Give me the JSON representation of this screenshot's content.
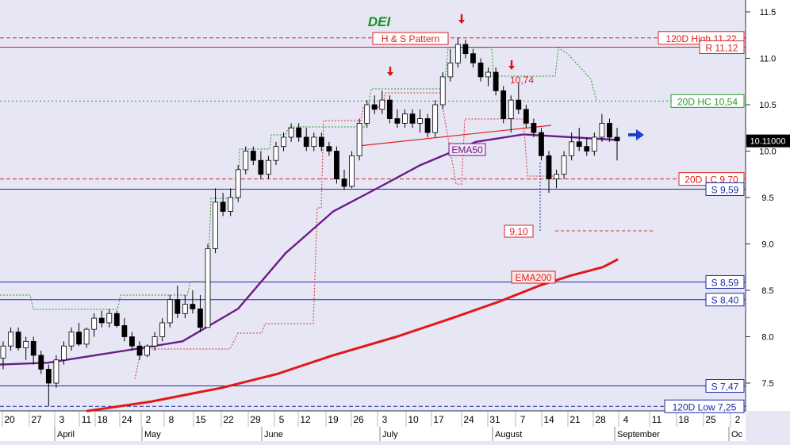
{
  "chart_data": {
    "type": "candlestick",
    "title": "DEI",
    "ylim": [
      7.2,
      11.6
    ],
    "y_ticks": [
      "11.5",
      "11.0",
      "10.5",
      "10.0",
      "9.5",
      "9.0",
      "8.5",
      "8.0",
      "7.5"
    ],
    "x_day_labels": [
      "20",
      "27",
      "3",
      "11",
      "18",
      "24",
      "2",
      "8",
      "15",
      "22",
      "29",
      "5",
      "12",
      "19",
      "26",
      "3",
      "10",
      "17",
      "24",
      "31",
      "7",
      "14",
      "21",
      "28",
      "4",
      "11",
      "18",
      "25",
      "2"
    ],
    "x_month_labels": [
      "April",
      "May",
      "June",
      "July",
      "August",
      "September",
      "Oc"
    ],
    "last_price": "10.11000",
    "horizontal_levels": [
      {
        "label": "120D High 11,22",
        "value": 11.22,
        "style": "dashed",
        "color": "#dd2222"
      },
      {
        "label": "R 11,12",
        "value": 11.12,
        "style": "solid",
        "color": "#dd2222"
      },
      {
        "label": "20D HC 10,54",
        "value": 10.54,
        "style": "dotted",
        "color": "#2a9a2a"
      },
      {
        "label": "20D LC 9,70",
        "value": 9.7,
        "style": "dashed",
        "color": "#dd2222"
      },
      {
        "label": "S 9,59",
        "value": 9.59,
        "style": "solid",
        "color": "#1a2aa8"
      },
      {
        "label": "S 8,59",
        "value": 8.59,
        "style": "solid",
        "color": "#1a2aa8"
      },
      {
        "label": "S 8,40",
        "value": 8.4,
        "style": "solid",
        "color": "#1a2aa8"
      },
      {
        "label": "S 7,47",
        "value": 7.47,
        "style": "solid",
        "color": "#1a2aa8"
      },
      {
        "label": "120D Low 7,25",
        "value": 7.25,
        "style": "dashed",
        "color": "#1a2aa8"
      }
    ],
    "annotations": [
      {
        "text": "H & S Pattern"
      },
      {
        "text": "10,74"
      },
      {
        "text": "9,10"
      },
      {
        "text": "EMA50"
      },
      {
        "text": "EMA200"
      }
    ],
    "series": [
      {
        "name": "EMA200",
        "values": [
          7.2,
          7.3,
          7.45,
          7.6,
          7.8,
          8.0,
          8.2,
          8.38,
          8.55,
          8.66,
          8.75,
          8.83
        ]
      },
      {
        "name": "EMA50",
        "values": [
          7.7,
          7.72,
          7.8,
          7.88,
          7.95,
          8.3,
          8.9,
          9.35,
          9.62,
          9.85,
          10.1,
          10.18,
          10.12
        ]
      }
    ],
    "candles": [
      {
        "o": 7.77,
        "h": 7.95,
        "l": 7.65,
        "c": 7.9
      },
      {
        "o": 7.9,
        "h": 8.1,
        "l": 7.85,
        "c": 8.05
      },
      {
        "o": 8.05,
        "h": 8.1,
        "l": 7.85,
        "c": 7.88
      },
      {
        "o": 7.88,
        "h": 8.0,
        "l": 7.75,
        "c": 7.95
      },
      {
        "o": 7.95,
        "h": 8.0,
        "l": 7.7,
        "c": 7.8
      },
      {
        "o": 7.8,
        "h": 7.85,
        "l": 7.6,
        "c": 7.65
      },
      {
        "o": 7.65,
        "h": 7.7,
        "l": 7.25,
        "c": 7.5
      },
      {
        "o": 7.5,
        "h": 7.8,
        "l": 7.45,
        "c": 7.75
      },
      {
        "o": 7.75,
        "h": 7.95,
        "l": 7.7,
        "c": 7.9
      },
      {
        "o": 7.9,
        "h": 8.1,
        "l": 7.85,
        "c": 8.05
      },
      {
        "o": 8.05,
        "h": 8.15,
        "l": 7.9,
        "c": 7.92
      },
      {
        "o": 7.92,
        "h": 8.1,
        "l": 7.88,
        "c": 8.08
      },
      {
        "o": 8.08,
        "h": 8.25,
        "l": 8.0,
        "c": 8.2
      },
      {
        "o": 8.2,
        "h": 8.28,
        "l": 8.1,
        "c": 8.15
      },
      {
        "o": 8.15,
        "h": 8.3,
        "l": 8.1,
        "c": 8.25
      },
      {
        "o": 8.25,
        "h": 8.28,
        "l": 8.1,
        "c": 8.12
      },
      {
        "o": 8.12,
        "h": 8.2,
        "l": 7.95,
        "c": 8.0
      },
      {
        "o": 8.0,
        "h": 8.05,
        "l": 7.85,
        "c": 7.9
      },
      {
        "o": 7.9,
        "h": 7.95,
        "l": 7.75,
        "c": 7.8
      },
      {
        "o": 7.8,
        "h": 7.92,
        "l": 7.78,
        "c": 7.9
      },
      {
        "o": 7.9,
        "h": 8.05,
        "l": 7.85,
        "c": 8.0
      },
      {
        "o": 8.0,
        "h": 8.2,
        "l": 7.95,
        "c": 8.15
      },
      {
        "o": 8.15,
        "h": 8.45,
        "l": 8.1,
        "c": 8.4
      },
      {
        "o": 8.4,
        "h": 8.55,
        "l": 8.2,
        "c": 8.25
      },
      {
        "o": 8.25,
        "h": 8.45,
        "l": 8.2,
        "c": 8.35
      },
      {
        "o": 8.35,
        "h": 8.5,
        "l": 8.25,
        "c": 8.3
      },
      {
        "o": 8.3,
        "h": 8.45,
        "l": 8.05,
        "c": 8.1
      },
      {
        "o": 8.1,
        "h": 9.0,
        "l": 8.1,
        "c": 8.95
      },
      {
        "o": 8.95,
        "h": 9.6,
        "l": 8.9,
        "c": 9.45
      },
      {
        "o": 9.45,
        "h": 9.55,
        "l": 9.3,
        "c": 9.35
      },
      {
        "o": 9.35,
        "h": 9.6,
        "l": 9.3,
        "c": 9.5
      },
      {
        "o": 9.5,
        "h": 9.85,
        "l": 9.45,
        "c": 9.8
      },
      {
        "o": 9.8,
        "h": 10.05,
        "l": 9.75,
        "c": 10.0
      },
      {
        "o": 10.0,
        "h": 10.05,
        "l": 9.85,
        "c": 9.9
      },
      {
        "o": 9.9,
        "h": 10.0,
        "l": 9.7,
        "c": 9.75
      },
      {
        "o": 9.75,
        "h": 9.95,
        "l": 9.7,
        "c": 9.9
      },
      {
        "o": 9.9,
        "h": 10.1,
        "l": 9.85,
        "c": 10.05
      },
      {
        "o": 10.05,
        "h": 10.2,
        "l": 10.0,
        "c": 10.15
      },
      {
        "o": 10.15,
        "h": 10.3,
        "l": 10.1,
        "c": 10.25
      },
      {
        "o": 10.25,
        "h": 10.3,
        "l": 10.1,
        "c": 10.15
      },
      {
        "o": 10.15,
        "h": 10.25,
        "l": 10.0,
        "c": 10.05
      },
      {
        "o": 10.05,
        "h": 10.2,
        "l": 10.0,
        "c": 10.15
      },
      {
        "o": 10.15,
        "h": 10.2,
        "l": 10.0,
        "c": 10.05
      },
      {
        "o": 10.05,
        "h": 10.1,
        "l": 9.95,
        "c": 10.0
      },
      {
        "o": 10.0,
        "h": 10.05,
        "l": 9.65,
        "c": 9.7
      },
      {
        "o": 9.7,
        "h": 9.8,
        "l": 9.58,
        "c": 9.62
      },
      {
        "o": 9.62,
        "h": 10.0,
        "l": 9.6,
        "c": 9.95
      },
      {
        "o": 9.95,
        "h": 10.35,
        "l": 9.9,
        "c": 10.3
      },
      {
        "o": 10.3,
        "h": 10.55,
        "l": 10.25,
        "c": 10.5
      },
      {
        "o": 10.5,
        "h": 10.6,
        "l": 10.4,
        "c": 10.45
      },
      {
        "o": 10.45,
        "h": 10.65,
        "l": 10.4,
        "c": 10.55
      },
      {
        "o": 10.55,
        "h": 10.6,
        "l": 10.3,
        "c": 10.35
      },
      {
        "o": 10.35,
        "h": 10.45,
        "l": 10.25,
        "c": 10.3
      },
      {
        "o": 10.3,
        "h": 10.45,
        "l": 10.25,
        "c": 10.4
      },
      {
        "o": 10.4,
        "h": 10.45,
        "l": 10.25,
        "c": 10.3
      },
      {
        "o": 10.3,
        "h": 10.45,
        "l": 10.2,
        "c": 10.35
      },
      {
        "o": 10.35,
        "h": 10.4,
        "l": 10.15,
        "c": 10.2
      },
      {
        "o": 10.2,
        "h": 10.55,
        "l": 10.15,
        "c": 10.5
      },
      {
        "o": 10.5,
        "h": 10.85,
        "l": 10.45,
        "c": 10.8
      },
      {
        "o": 10.8,
        "h": 11.1,
        "l": 10.75,
        "c": 10.95
      },
      {
        "o": 10.95,
        "h": 11.22,
        "l": 10.9,
        "c": 11.15
      },
      {
        "o": 11.15,
        "h": 11.2,
        "l": 11.0,
        "c": 11.05
      },
      {
        "o": 11.05,
        "h": 11.1,
        "l": 10.9,
        "c": 10.95
      },
      {
        "o": 10.95,
        "h": 11.0,
        "l": 10.75,
        "c": 10.8
      },
      {
        "o": 10.8,
        "h": 10.9,
        "l": 10.7,
        "c": 10.85
      },
      {
        "o": 10.85,
        "h": 10.9,
        "l": 10.6,
        "c": 10.65
      },
      {
        "o": 10.65,
        "h": 10.7,
        "l": 10.3,
        "c": 10.35
      },
      {
        "o": 10.35,
        "h": 10.6,
        "l": 10.2,
        "c": 10.55
      },
      {
        "o": 10.55,
        "h": 10.74,
        "l": 10.4,
        "c": 10.45
      },
      {
        "o": 10.45,
        "h": 10.5,
        "l": 10.25,
        "c": 10.3
      },
      {
        "o": 10.3,
        "h": 10.35,
        "l": 10.15,
        "c": 10.2
      },
      {
        "o": 10.2,
        "h": 10.25,
        "l": 9.9,
        "c": 9.95
      },
      {
        "o": 9.95,
        "h": 10.0,
        "l": 9.55,
        "c": 9.7
      },
      {
        "o": 9.7,
        "h": 9.8,
        "l": 9.6,
        "c": 9.75
      },
      {
        "o": 9.75,
        "h": 10.0,
        "l": 9.7,
        "c": 9.95
      },
      {
        "o": 9.95,
        "h": 10.2,
        "l": 9.9,
        "c": 10.1
      },
      {
        "o": 10.1,
        "h": 10.25,
        "l": 10.0,
        "c": 10.05
      },
      {
        "o": 10.05,
        "h": 10.15,
        "l": 9.95,
        "c": 10.0
      },
      {
        "o": 10.0,
        "h": 10.2,
        "l": 9.95,
        "c": 10.15
      },
      {
        "o": 10.15,
        "h": 10.4,
        "l": 10.1,
        "c": 10.3
      },
      {
        "o": 10.3,
        "h": 10.35,
        "l": 10.1,
        "c": 10.15
      },
      {
        "o": 10.15,
        "h": 10.25,
        "l": 9.9,
        "c": 10.11
      }
    ]
  }
}
